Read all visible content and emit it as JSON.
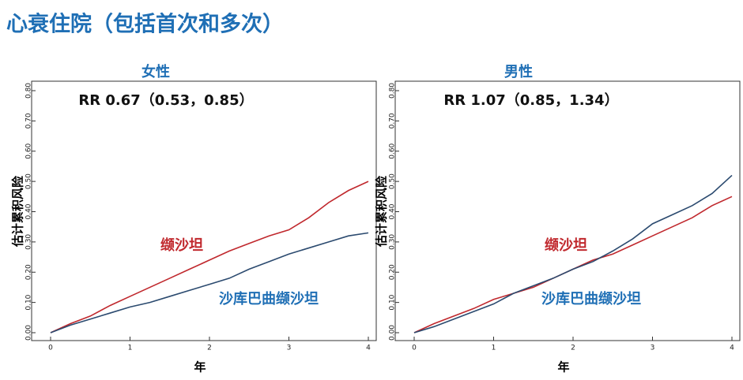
{
  "title": "心衰住院（包括首次和多次）",
  "chart_data": [
    {
      "type": "line",
      "title": "女性",
      "annotation": "RR 0.67（0.53，0.85）",
      "x_label": "年",
      "y_label": "估计累积风险",
      "x": [
        0,
        0.25,
        0.5,
        0.75,
        1,
        1.25,
        1.5,
        1.75,
        2,
        2.25,
        2.5,
        2.75,
        3,
        3.25,
        3.5,
        3.75,
        4
      ],
      "series": [
        {
          "name": "缬沙坦",
          "color": "#c0282d",
          "values": [
            0,
            0.03,
            0.055,
            0.09,
            0.12,
            0.15,
            0.18,
            0.21,
            0.24,
            0.27,
            0.295,
            0.32,
            0.34,
            0.38,
            0.43,
            0.47,
            0.5
          ]
        },
        {
          "name": "沙库巴曲缬沙坦",
          "color": "#2b4a6f",
          "values": [
            0,
            0.025,
            0.045,
            0.065,
            0.085,
            0.1,
            0.12,
            0.14,
            0.16,
            0.18,
            0.21,
            0.235,
            0.26,
            0.28,
            0.3,
            0.32,
            0.33
          ]
        }
      ],
      "xlim": [
        0,
        4
      ],
      "xticks": [
        0,
        1,
        2,
        3,
        4
      ],
      "ylim": [
        0,
        0.8
      ],
      "yticks": [
        {
          "value": 0,
          "label": "0.00"
        },
        {
          "value": 0.1,
          "label": "0.10"
        },
        {
          "value": 0.2,
          "label": "0.20"
        },
        {
          "value": 0.3,
          "label": "0.30"
        },
        {
          "value": 0.4,
          "label": "0.40"
        },
        {
          "value": 0.5,
          "label": "0.50"
        },
        {
          "value": 0.6,
          "label": "0.60"
        },
        {
          "value": 0.7,
          "label": "0.70"
        },
        {
          "value": 0.8,
          "label": "0.80"
        }
      ]
    },
    {
      "type": "line",
      "title": "男性",
      "annotation": "RR 1.07（0.85，1.34）",
      "x_label": "年",
      "y_label": "估计累积风险",
      "x": [
        0,
        0.25,
        0.5,
        0.75,
        1,
        1.25,
        1.5,
        1.75,
        2,
        2.25,
        2.5,
        2.75,
        3,
        3.25,
        3.5,
        3.75,
        4
      ],
      "series": [
        {
          "name": "缬沙坦",
          "color": "#c0282d",
          "values": [
            0,
            0.03,
            0.055,
            0.08,
            0.11,
            0.13,
            0.15,
            0.18,
            0.21,
            0.24,
            0.26,
            0.29,
            0.32,
            0.35,
            0.38,
            0.42,
            0.45
          ]
        },
        {
          "name": "沙库巴曲缬沙坦",
          "color": "#2b4a6f",
          "values": [
            0,
            0.02,
            0.045,
            0.07,
            0.095,
            0.13,
            0.155,
            0.18,
            0.21,
            0.235,
            0.27,
            0.31,
            0.36,
            0.39,
            0.42,
            0.46,
            0.52
          ]
        }
      ],
      "xlim": [
        0,
        4
      ],
      "xticks": [
        0,
        1,
        2,
        3,
        4
      ],
      "ylim": [
        0,
        0.8
      ],
      "yticks": [
        {
          "value": 0,
          "label": "0.00"
        },
        {
          "value": 0.1,
          "label": "0.10"
        },
        {
          "value": 0.2,
          "label": "0.20"
        },
        {
          "value": 0.3,
          "label": "0.30"
        },
        {
          "value": 0.4,
          "label": "0.40"
        },
        {
          "value": 0.5,
          "label": "0.50"
        },
        {
          "value": 0.6,
          "label": "0.60"
        },
        {
          "value": 0.7,
          "label": "0.70"
        },
        {
          "value": 0.8,
          "label": "0.80"
        }
      ]
    }
  ]
}
